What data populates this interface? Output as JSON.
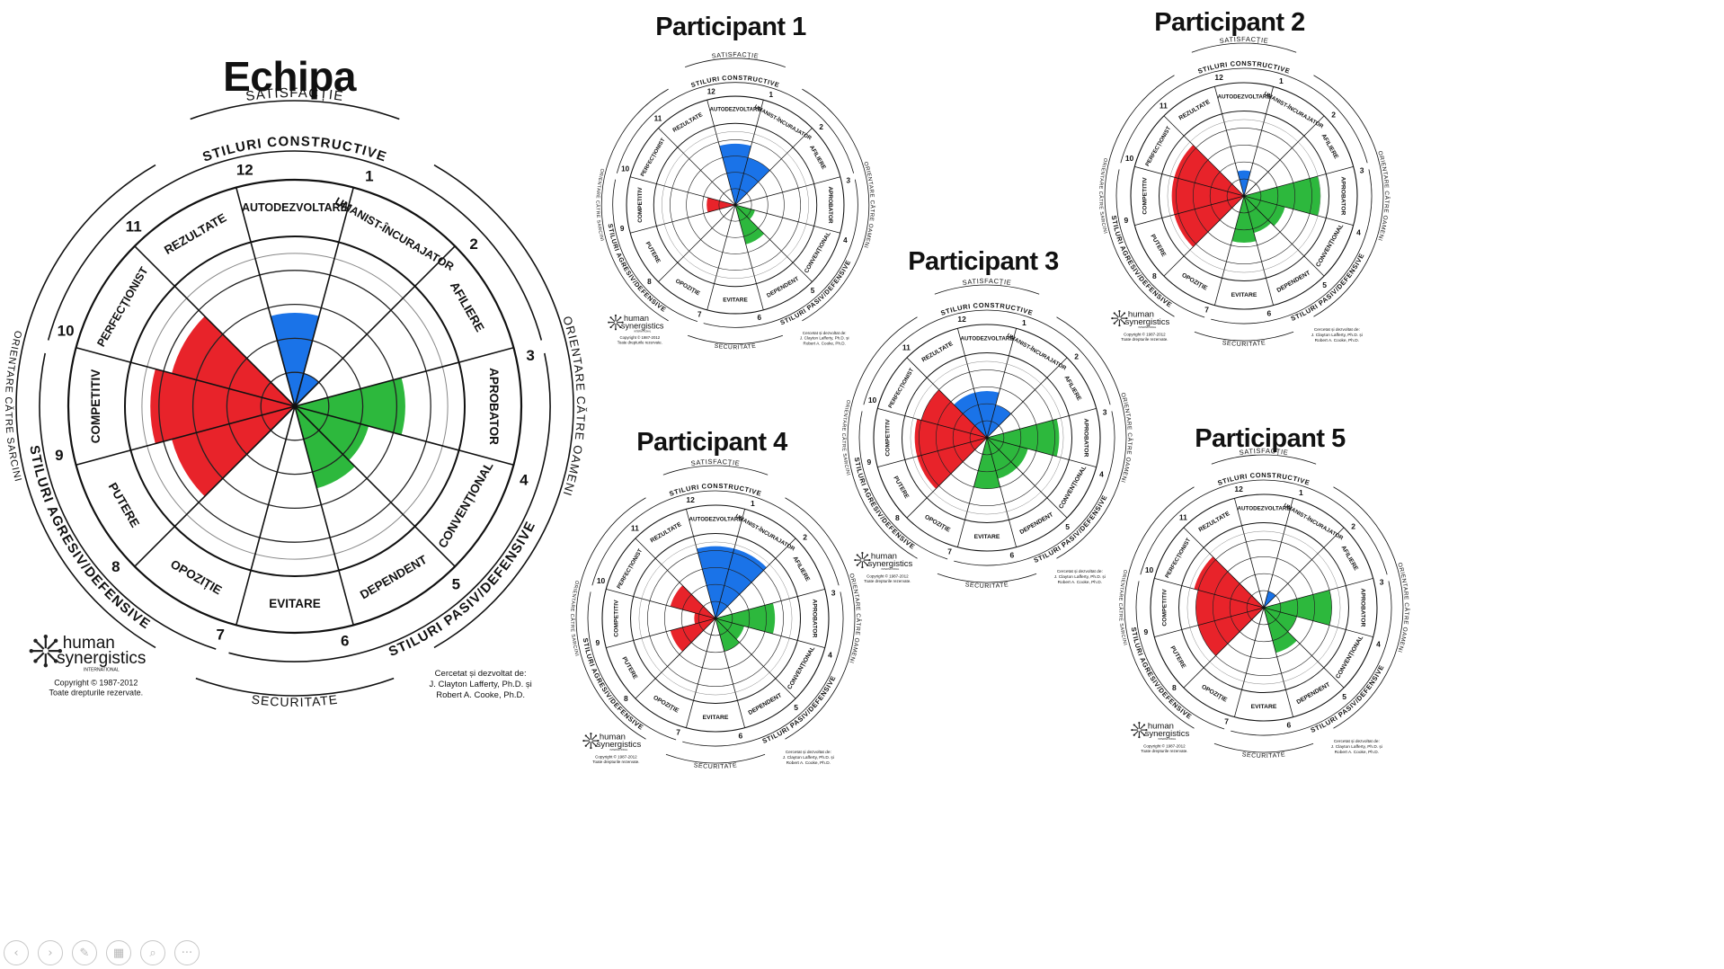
{
  "labels": {
    "satisfaction": "SATISFACȚIE",
    "security": "SECURITATE",
    "constructive": "STILURI CONSTRUCTIVE",
    "passive": "STILURI PASIV/DEFENSIVE",
    "aggressive": "STILURI AGRESIV/DEFENSIVE",
    "task": "ORIENTARE CĂTRE SARCINI",
    "people": "ORIENTARE CĂTRE OAMENI",
    "logo_line1": "human",
    "logo_line2": "synergistics",
    "logo_sub": "INTERNATIONAL",
    "copyright1": "Copyright © 1987-2012",
    "copyright2": "Toate drepturile rezervate.",
    "credit1": "Cercetat și dezvoltat de:",
    "credit2": "J. Clayton Lafferty, Ph.D. și",
    "credit3": "Robert A. Cooke, Ph.D."
  },
  "styles": [
    {
      "num": "1",
      "name": "UMANIST-ÎNCURAJATOR"
    },
    {
      "num": "2",
      "name": "AFILIERE"
    },
    {
      "num": "3",
      "name": "APROBATOR"
    },
    {
      "num": "4",
      "name": "CONVENȚIONAL"
    },
    {
      "num": "5",
      "name": "DEPENDENT"
    },
    {
      "num": "6",
      "name": "EVITARE"
    },
    {
      "num": "7",
      "name": "OPOZIȚIE"
    },
    {
      "num": "8",
      "name": "PUTERE"
    },
    {
      "num": "9",
      "name": "COMPETITIV"
    },
    {
      "num": "10",
      "name": "PERFECȚIONIST"
    },
    {
      "num": "11",
      "name": "REZULTATE"
    },
    {
      "num": "12",
      "name": "AUTODEZVOLTARE"
    }
  ],
  "colors": {
    "constructive": "#1a73e8",
    "passive": "#2db83d",
    "aggressive": "#e8232a",
    "line": "#111111",
    "ring": "#333333"
  },
  "chart_data": [
    {
      "type": "circumplex",
      "title": "Echipa",
      "scale_max": 100,
      "values": [
        20,
        0,
        65,
        45,
        50,
        0,
        0,
        75,
        85,
        75,
        0,
        55
      ]
    },
    {
      "type": "circumplex",
      "title": "Participant 1",
      "scale_max": 100,
      "values": [
        60,
        0,
        0,
        25,
        50,
        0,
        0,
        0,
        35,
        0,
        0,
        75
      ]
    },
    {
      "type": "circumplex",
      "title": "Participant 2",
      "scale_max": 100,
      "values": [
        0,
        0,
        90,
        50,
        45,
        55,
        0,
        85,
        85,
        85,
        0,
        30
      ]
    },
    {
      "type": "circumplex",
      "title": "Participant 3",
      "scale_max": 100,
      "values": [
        40,
        0,
        85,
        50,
        50,
        60,
        0,
        85,
        85,
        80,
        55,
        55
      ]
    },
    {
      "type": "circumplex",
      "title": "Participant 4",
      "scale_max": 100,
      "values": [
        85,
        0,
        70,
        35,
        40,
        0,
        0,
        55,
        25,
        55,
        0,
        85
      ]
    },
    {
      "type": "circumplex",
      "title": "Participant 5",
      "scale_max": 100,
      "values": [
        20,
        0,
        80,
        40,
        55,
        0,
        0,
        80,
        80,
        85,
        0,
        0
      ]
    }
  ],
  "nav": {
    "prev": "‹",
    "next": "›",
    "pen": "✎",
    "slides": "▦",
    "zoom": "⌕",
    "more": "···"
  }
}
